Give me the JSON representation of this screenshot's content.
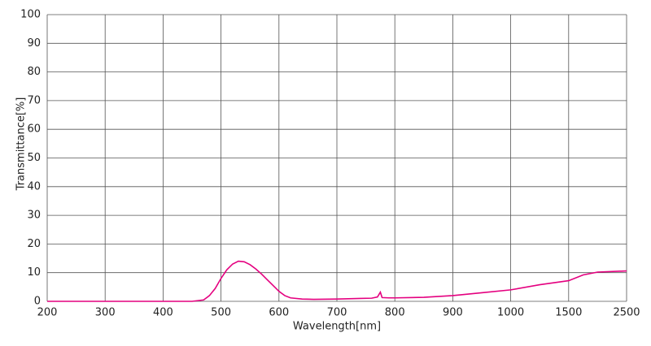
{
  "chart_data": {
    "type": "line",
    "xlabel": "Wavelength[nm]",
    "ylabel": "Transmittance[%]",
    "x": [
      200,
      450,
      470,
      480,
      490,
      500,
      510,
      520,
      530,
      540,
      550,
      560,
      570,
      580,
      590,
      600,
      610,
      620,
      640,
      660,
      700,
      740,
      760,
      770,
      775,
      778,
      790,
      800,
      850,
      900,
      950,
      1000,
      1250,
      1500,
      1750,
      2000,
      2500
    ],
    "series": [
      {
        "color": "#e4007f",
        "values": [
          0,
          0,
          0.5,
          2,
          4.5,
          8,
          11,
          13,
          14,
          13.8,
          12.8,
          11.3,
          9.5,
          7.5,
          5.5,
          3.5,
          2,
          1.2,
          0.8,
          0.7,
          0.8,
          1.0,
          1.1,
          1.5,
          3.2,
          1.3,
          1.2,
          1.2,
          1.4,
          2.0,
          3.0,
          4.0,
          5.8,
          7.2,
          9.2,
          10.2,
          10.6
        ]
      }
    ],
    "xlim": [
      200,
      2500
    ],
    "xticks": [
      200,
      300,
      400,
      500,
      600,
      700,
      800,
      900,
      1000,
      1500,
      2500
    ],
    "ylim": [
      0,
      100
    ],
    "yticks": [
      0,
      10,
      20,
      30,
      40,
      50,
      60,
      70,
      80,
      90,
      100
    ],
    "grid": true
  }
}
